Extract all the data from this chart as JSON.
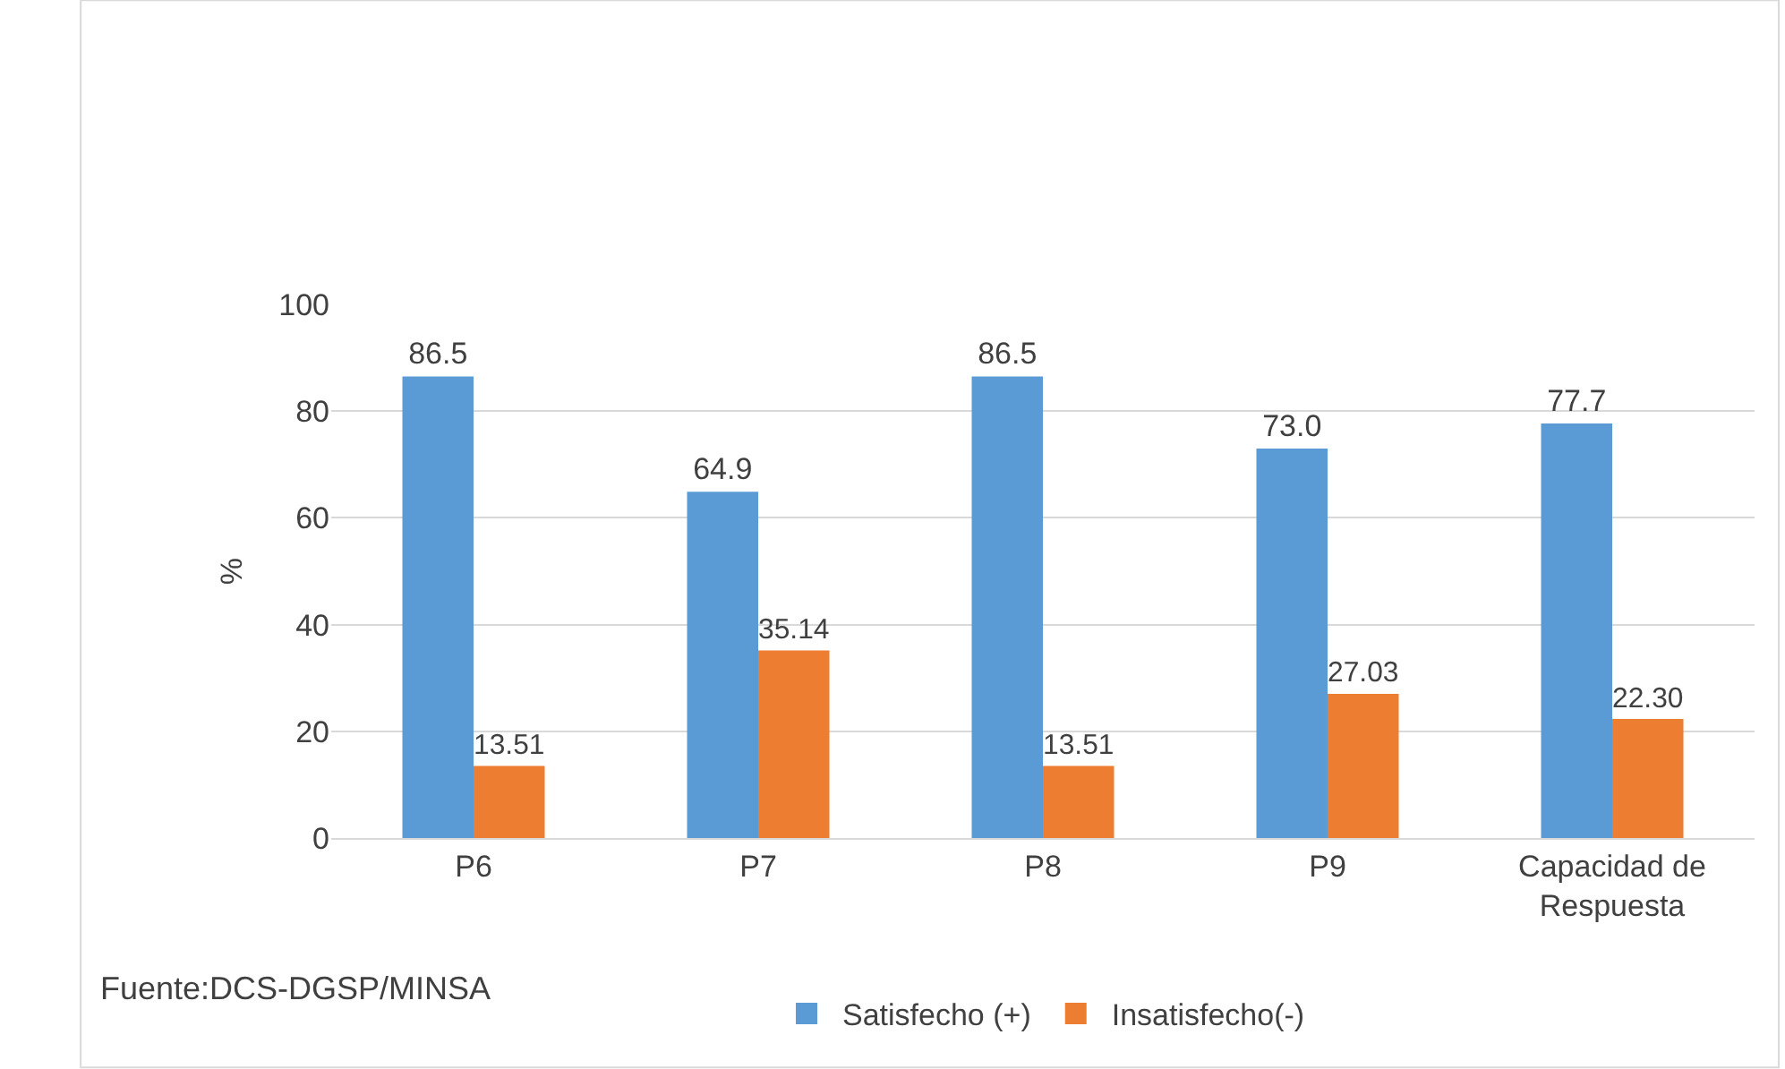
{
  "chart_data": {
    "type": "bar",
    "ylabel": "%",
    "categories": [
      "P6",
      "P7",
      "P8",
      "P9",
      "Capacidad de Respuesta"
    ],
    "series": [
      {
        "name": "Satisfecho (+)",
        "color": "#5b9bd5",
        "values": [
          86.5,
          64.9,
          86.5,
          73.0,
          77.7
        ],
        "value_labels": [
          "86.5",
          "64.9",
          "86.5",
          "73.0",
          "77.7"
        ]
      },
      {
        "name": "Insatisfecho(-)",
        "color": "#ed7d31",
        "values": [
          13.51,
          35.14,
          13.51,
          27.03,
          22.3
        ],
        "value_labels": [
          "13.51",
          "35.14",
          "13.51",
          "27.03",
          "22.30"
        ]
      }
    ],
    "ylim": [
      0,
      100
    ],
    "yticks": [
      0,
      20,
      40,
      60,
      80,
      100
    ],
    "grid": "y",
    "legend": "bottom",
    "annotations": [
      "Fuente:DCS-DGSP/MINSA"
    ]
  }
}
